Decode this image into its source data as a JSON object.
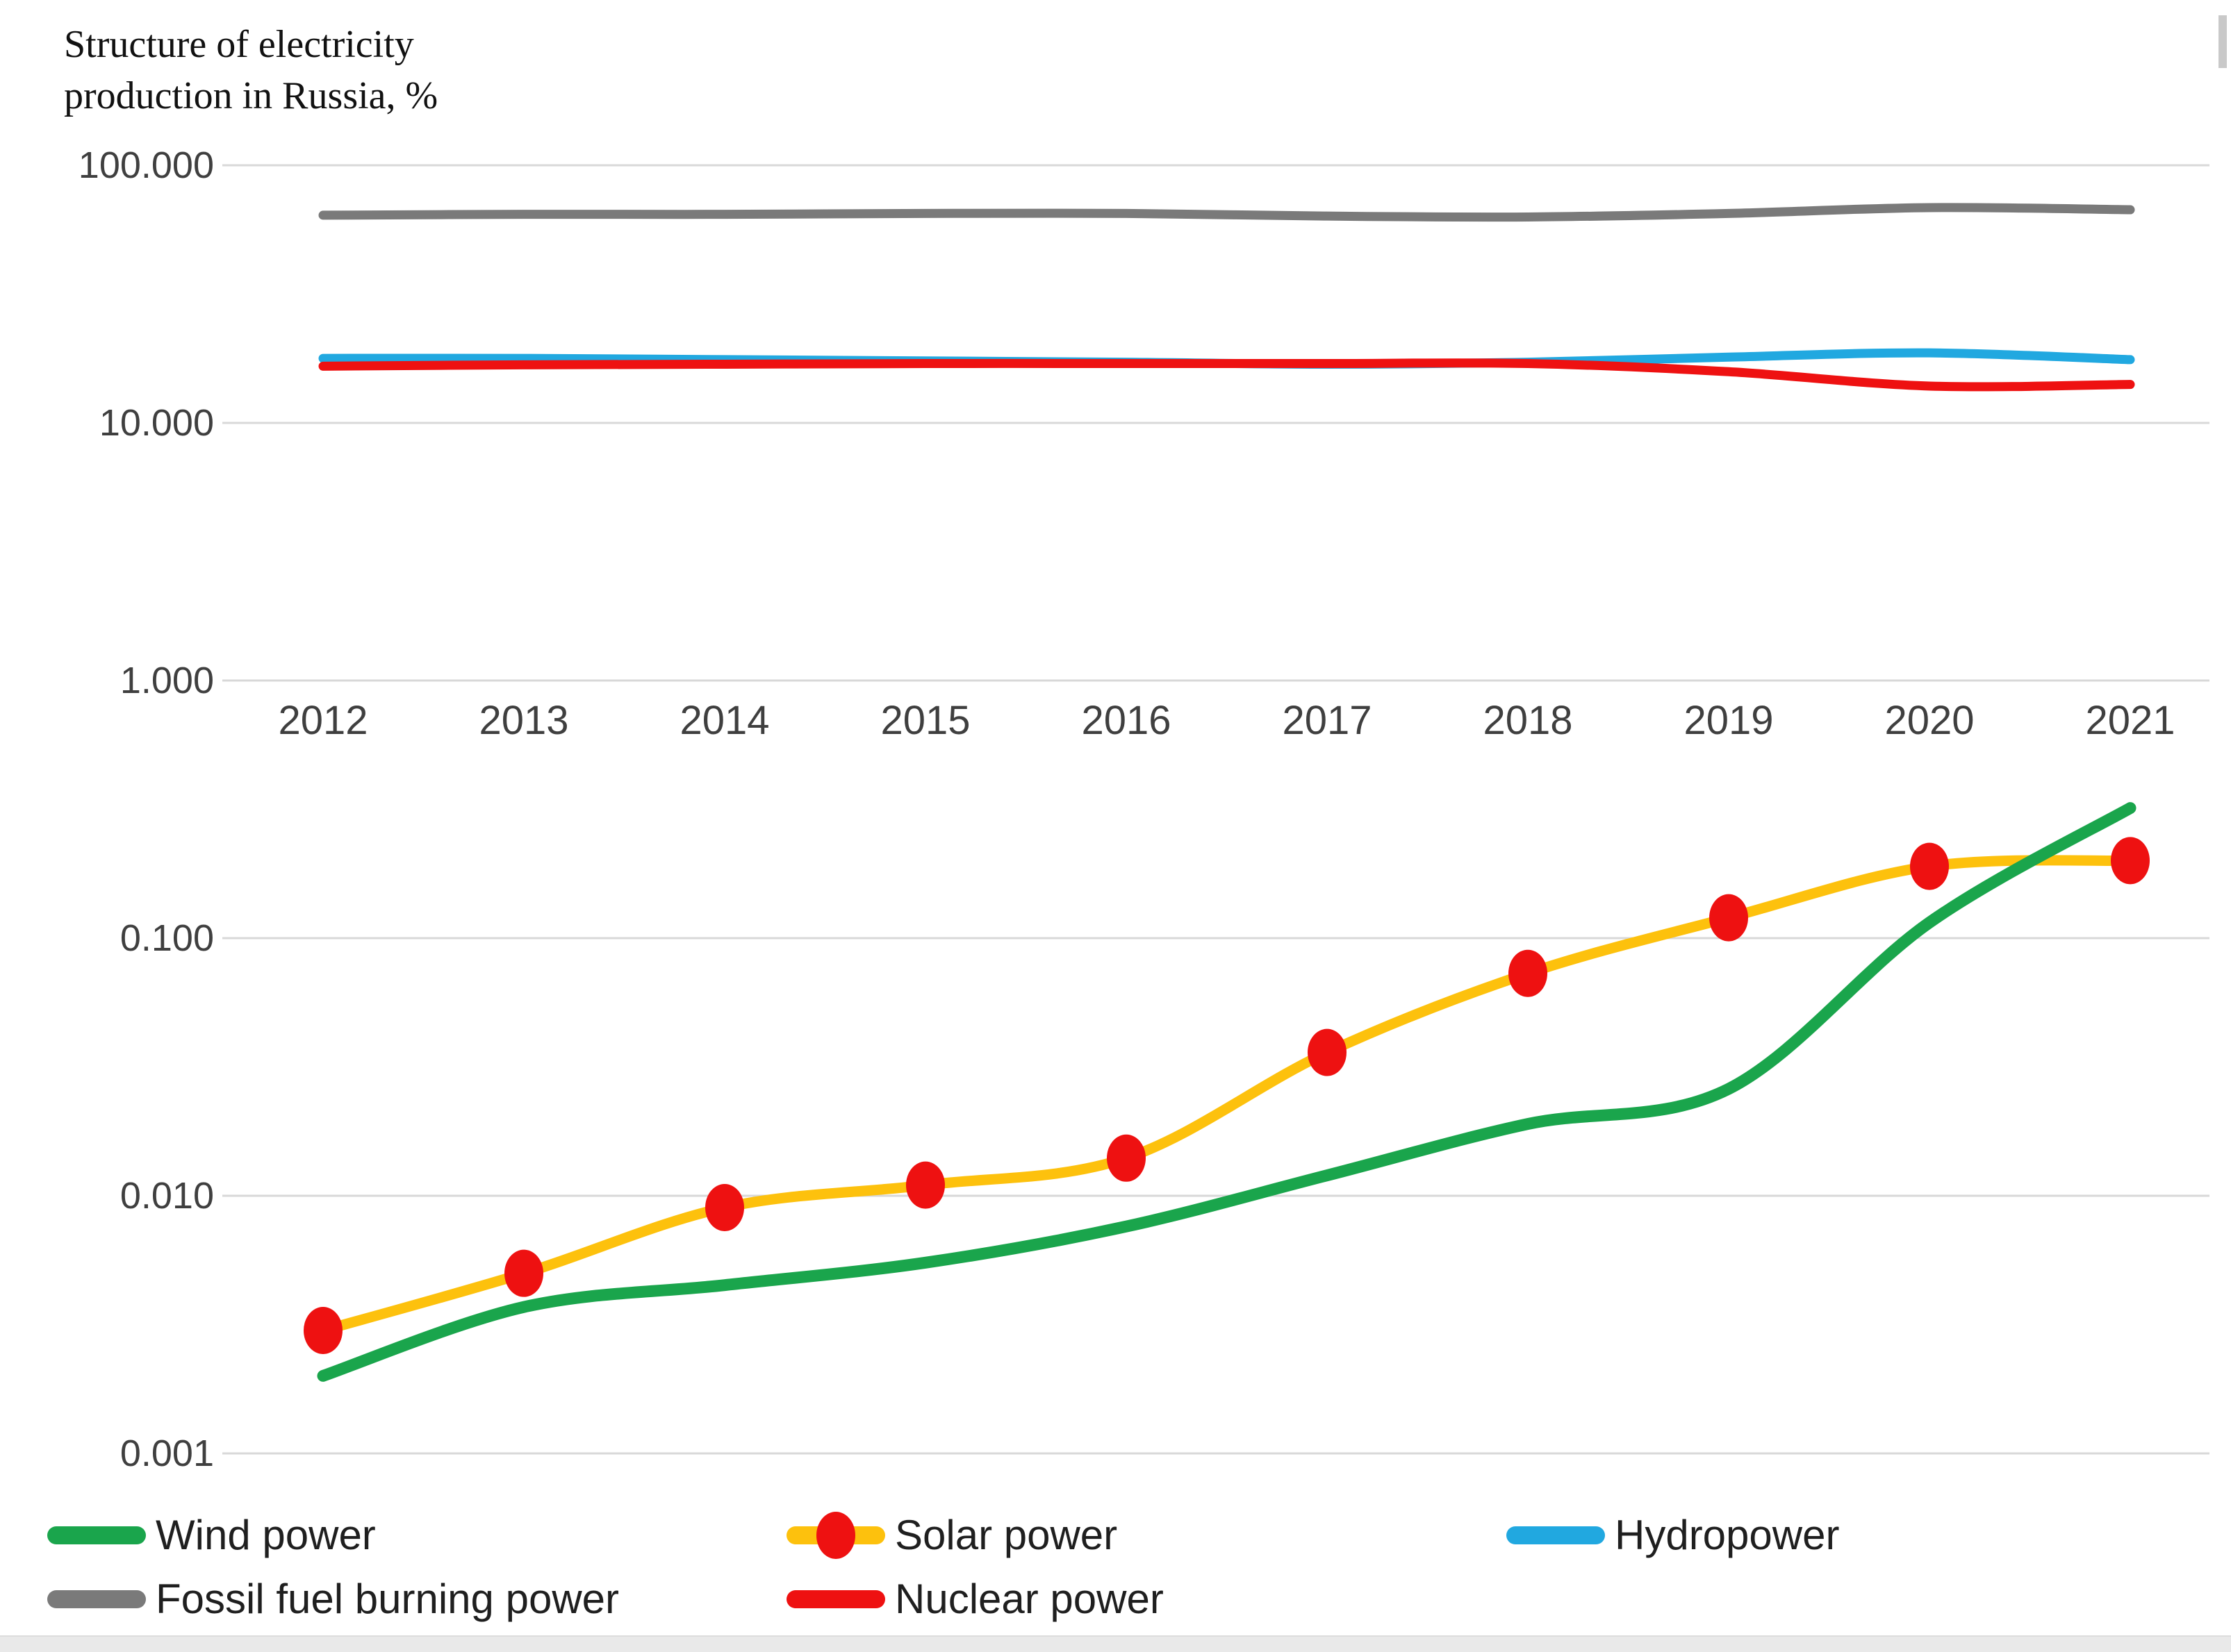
{
  "header": {
    "title_line1": "Structure of electricity",
    "title_line2": "production in Russia, %"
  },
  "legend": {
    "items": [
      {
        "label": "Wind power"
      },
      {
        "label": "Solar power"
      },
      {
        "label": "Hydropower"
      },
      {
        "label": "Fossil fuel burning power"
      },
      {
        "label": "Nuclear power"
      }
    ]
  },
  "chart_data": {
    "type": "line",
    "title": "Structure of electricity production in Russia, %",
    "y_scale": "log",
    "ylim": [
      0.001,
      100
    ],
    "grid": true,
    "legend_position": "bottom",
    "x": [
      2012,
      2013,
      2014,
      2015,
      2016,
      2017,
      2018,
      2019,
      2020,
      2021
    ],
    "y_ticks": {
      "labels": [
        "100.000",
        "10.000",
        "1.000",
        "0.100",
        "0.010",
        "0.001"
      ],
      "values": [
        100,
        10,
        1,
        0.1,
        0.01,
        0.001
      ]
    },
    "series": [
      {
        "name": "Wind power",
        "color": "#1aa54c",
        "width": 17,
        "values": [
          0.002,
          0.0037,
          0.0045,
          0.0055,
          0.0076,
          0.012,
          0.019,
          0.026,
          0.115,
          0.32
        ]
      },
      {
        "name": "Solar power",
        "color": "#fdc10d",
        "width": 15,
        "marker_color": "#ee1111",
        "values": [
          0.003,
          0.005,
          0.009,
          0.011,
          0.014,
          0.036,
          0.073,
          0.12,
          0.19,
          0.2
        ]
      },
      {
        "name": "Hydropower",
        "color": "#21a8e0",
        "width": 13,
        "values": [
          17.8,
          17.8,
          17.6,
          17.4,
          17.2,
          16.9,
          17.2,
          18.0,
          18.7,
          17.6
        ]
      },
      {
        "name": "Fossil fuel burning power",
        "color": "#7a7a7a",
        "width": 13,
        "values": [
          64.0,
          64.5,
          64.5,
          65.0,
          65.0,
          63.5,
          63.0,
          65.0,
          68.5,
          67.2
        ]
      },
      {
        "name": "Nuclear power",
        "color": "#ee1111",
        "width": 13,
        "values": [
          16.6,
          16.8,
          16.9,
          17.0,
          17.0,
          17.0,
          17.0,
          15.8,
          13.9,
          14.1
        ]
      }
    ],
    "draw_order": [
      3,
      2,
      4,
      1,
      0
    ]
  }
}
